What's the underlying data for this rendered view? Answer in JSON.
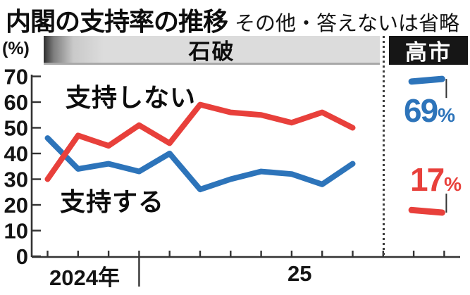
{
  "title": "内閣の支持率の推移",
  "subtitle": "その他・答えないは省略",
  "y_axis": {
    "unit_label": "(%)"
  },
  "era_headers": {
    "ishiba": "石破",
    "takaichi": "高市"
  },
  "series_labels": {
    "disapprove": "支持しない",
    "approve": "支持する"
  },
  "x_axis_labels": {
    "year_2024": "2024年",
    "year_25": "25"
  },
  "callouts": {
    "approve": {
      "value": "69",
      "unit": "%"
    },
    "disapprove": {
      "value": "17",
      "unit": "%"
    }
  },
  "colors": {
    "approve": "#2d74ba",
    "disapprove": "#e8403b",
    "axis": "#333333",
    "leader": "#333333",
    "header_bar": "#dcdcdc",
    "takaichi_box": "#161616"
  },
  "chart_data": {
    "type": "line",
    "title": "内閣の支持率の推移",
    "note": "その他・答えないは省略",
    "unit": "%",
    "ylim": [
      0,
      70
    ],
    "yticks": [
      70,
      60,
      50,
      40,
      30,
      20,
      10,
      0
    ],
    "x_visible_labels": [
      "2024年",
      "25"
    ],
    "num_x_ticks": 14,
    "year_divider_tick_index": 3,
    "grid": false,
    "eras": [
      {
        "label": "石破",
        "point_tick_indices": [
          0,
          1,
          2,
          3,
          4,
          5,
          6,
          7,
          8,
          9,
          10
        ],
        "series": [
          {
            "name": "支持する",
            "color": "#2d74ba",
            "values": [
              46,
              34,
              36,
              33,
              40,
              26,
              30,
              33,
              32,
              28,
              36
            ]
          },
          {
            "name": "支持しない",
            "color": "#e8403b",
            "values": [
              30,
              47,
              43,
              51,
              44,
              59,
              56,
              55,
              52,
              56,
              50
            ]
          }
        ]
      },
      {
        "label": "高市",
        "point_tick_indices": [
          12,
          13
        ],
        "series": [
          {
            "name": "支持する",
            "color": "#2d74ba",
            "values": [
              68,
              69
            ],
            "latest_label": "69%"
          },
          {
            "name": "支持しない",
            "color": "#e8403b",
            "values": [
              18,
              17
            ],
            "latest_label": "17%"
          }
        ]
      }
    ]
  }
}
